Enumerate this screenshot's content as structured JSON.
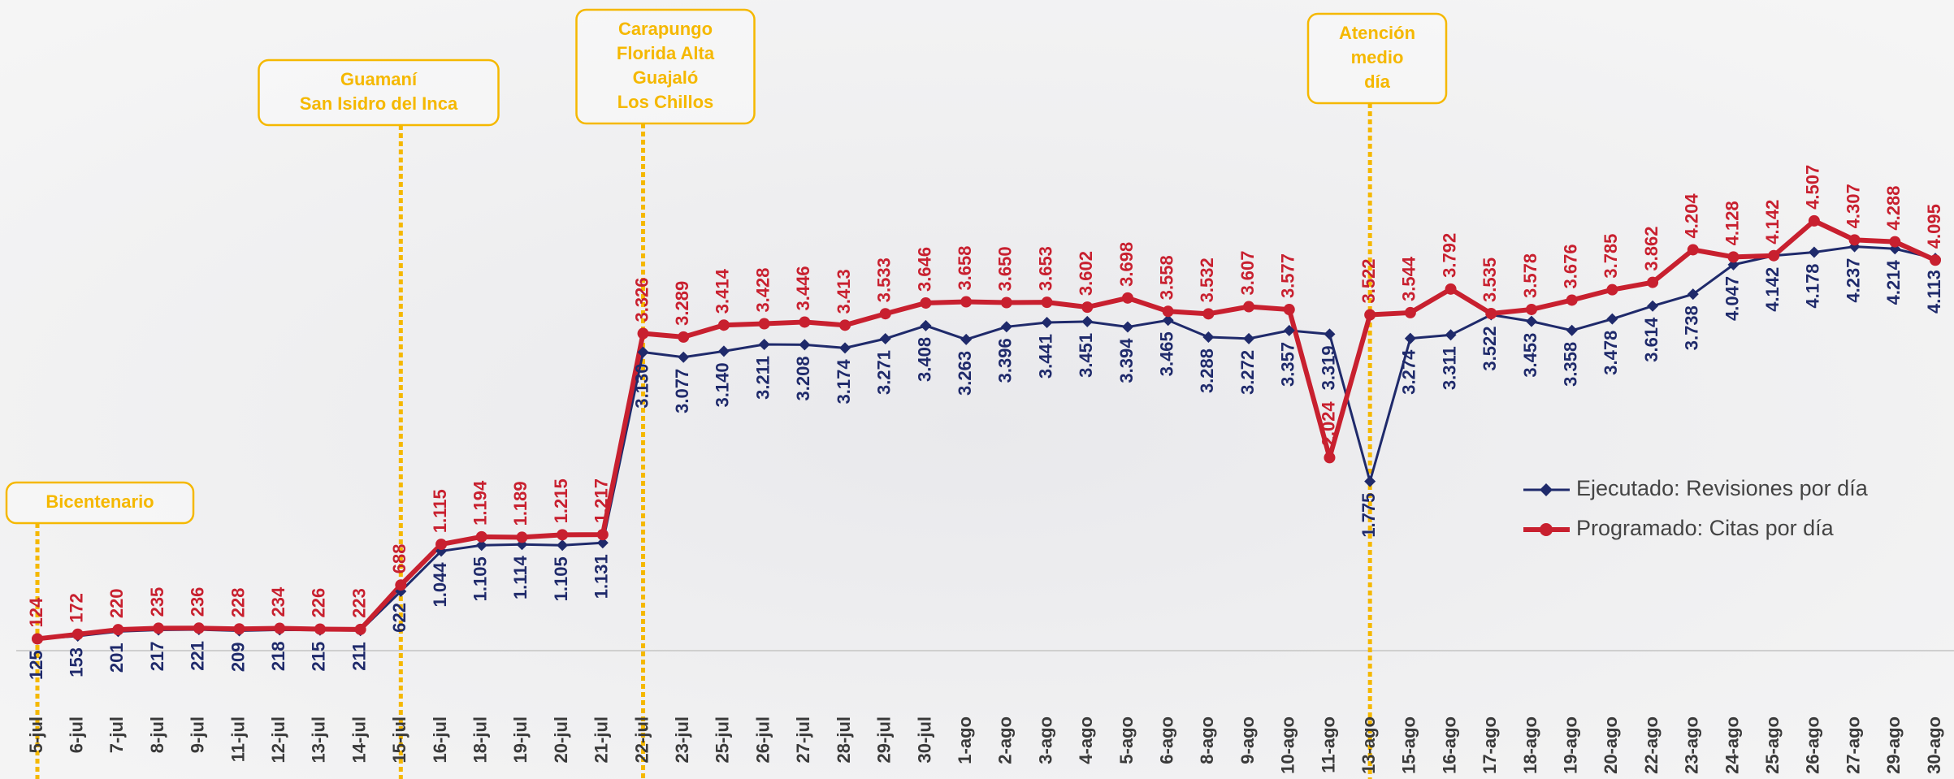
{
  "chart_data": {
    "type": "line",
    "categories": [
      "5-jul",
      "6-jul",
      "7-jul",
      "8-jul",
      "9-jul",
      "11-jul",
      "12-jul",
      "13-jul",
      "14-jul",
      "15-jul",
      "16-jul",
      "18-jul",
      "19-jul",
      "20-jul",
      "21-jul",
      "22-jul",
      "23-jul",
      "25-jul",
      "26-jul",
      "27-jul",
      "28-jul",
      "29-jul",
      "30-jul",
      "1-ago",
      "2-ago",
      "3-ago",
      "4-ago",
      "5-ago",
      "6-ago",
      "8-ago",
      "9-ago",
      "10-ago",
      "11-ago",
      "13-ago",
      "15-ago",
      "16-ago",
      "17-ago",
      "18-ago",
      "19-ago",
      "20-ago",
      "22-ago",
      "23-ago",
      "24-ago",
      "25-ago",
      "26-ago",
      "27-ago",
      "29-ago",
      "30-ago"
    ],
    "series": [
      {
        "name": "Ejecutado: Revisiones por día",
        "color": "#1f2a6b",
        "marker": "diamond",
        "values": [
          125,
          153,
          201,
          217,
          221,
          209,
          218,
          215,
          211,
          622,
          1044,
          1105,
          1114,
          1105,
          1131,
          3130,
          3077,
          3140,
          3211,
          3208,
          3174,
          3271,
          3408,
          3263,
          3396,
          3441,
          3451,
          3394,
          3465,
          3288,
          3272,
          3357,
          3319,
          1775,
          3274,
          3311,
          3522,
          3453,
          3358,
          3478,
          3614,
          3738,
          4047,
          4142,
          4178,
          4237,
          4214,
          4113
        ],
        "value_labels": [
          "125",
          "153",
          "201",
          "217",
          "221",
          "209",
          "218",
          "215",
          "211",
          "622",
          "1.044",
          "1.105",
          "1.114",
          "1.105",
          "1.131",
          "3.130",
          "3.077",
          "3.140",
          "3.211",
          "3.208",
          "3.174",
          "3.271",
          "3.408",
          "3.263",
          "3.396",
          "3.441",
          "3.451",
          "3.394",
          "3.465",
          "3.288",
          "3.272",
          "3.357",
          "3.319",
          "1.775",
          "3.274",
          "3.311",
          "3.522",
          "3.453",
          "3.358",
          "3.478",
          "3.614",
          "3.738",
          "4.047",
          "4.142",
          "4.178",
          "4.237",
          "4.214",
          "4.113"
        ]
      },
      {
        "name": "Programado: Citas por día",
        "color": "#c8202f",
        "marker": "circle",
        "values": [
          124,
          172,
          220,
          235,
          236,
          228,
          234,
          226,
          223,
          688,
          1115,
          1194,
          1189,
          1215,
          1217,
          3326,
          3289,
          3414,
          3428,
          3446,
          3413,
          3533,
          3646,
          3658,
          3650,
          3653,
          3602,
          3698,
          3558,
          3532,
          3607,
          3577,
          2024,
          3522,
          3544,
          3792,
          3535,
          3578,
          3676,
          3785,
          3862,
          4204,
          4128,
          4142,
          4507,
          4307,
          4288,
          4095
        ],
        "value_labels": [
          "124",
          "172",
          "220",
          "235",
          "236",
          "228",
          "234",
          "226",
          "223",
          "688",
          "1.115",
          "1.194",
          "1.189",
          "1.215",
          "1.217",
          "3.326",
          "3.289",
          "3.414",
          "3.428",
          "3.446",
          "3.413",
          "3.533",
          "3.646",
          "3.658",
          "3.650",
          "3.653",
          "3.602",
          "3.698",
          "3.558",
          "3.532",
          "3.607",
          "3.577",
          "2.024",
          "3.522",
          "3.544",
          "3.792",
          "3.535",
          "3.578",
          "3.676",
          "3.785",
          "3.862",
          "4.204",
          "4.128",
          "4.142",
          "4.507",
          "4.307",
          "4.288",
          "4.095"
        ]
      }
    ],
    "ylim": [
      0,
      5000
    ],
    "legend": "right",
    "annotations": [
      {
        "at": "5-jul",
        "lines": [
          "Bicentenario"
        ]
      },
      {
        "at": "15-jul",
        "lines": [
          "Guamaní",
          "San Isidro del Inca"
        ]
      },
      {
        "at": "22-jul",
        "lines": [
          "Carapungo",
          "Florida Alta",
          "Guajaló",
          "Los Chillos"
        ]
      },
      {
        "at": "13-ago",
        "lines": [
          "Atención",
          "medio",
          "día"
        ]
      }
    ]
  }
}
